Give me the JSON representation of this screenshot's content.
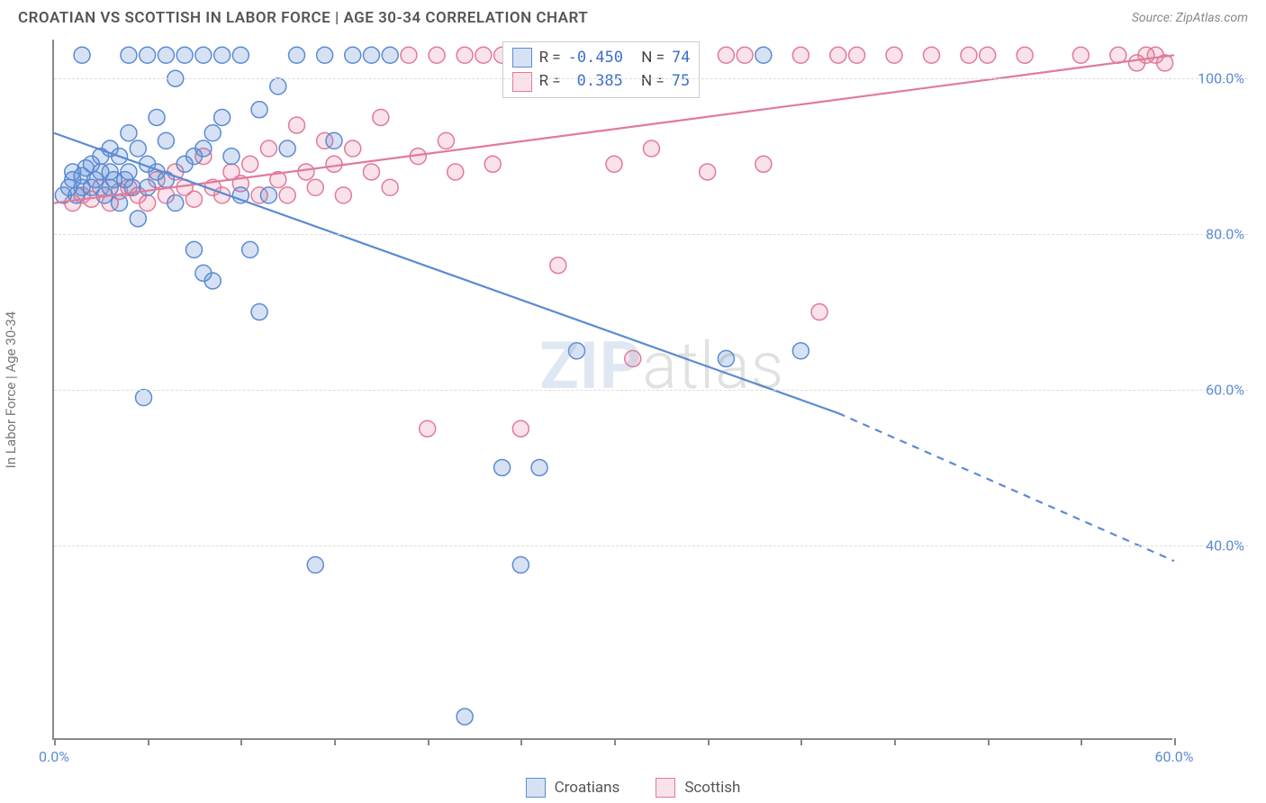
{
  "title": "CROATIAN VS SCOTTISH IN LABOR FORCE | AGE 30-34 CORRELATION CHART",
  "source_prefix": "Source: ",
  "source_name": "ZipAtlas.com",
  "y_axis_label": "In Labor Force | Age 30-34",
  "watermark_bold": "ZIP",
  "watermark_thin": "atlas",
  "chart": {
    "type": "scatter-with-regression",
    "background_color": "#ffffff",
    "grid_color": "#dddddd",
    "axis_color": "#888888",
    "xlim": [
      0,
      60
    ],
    "ylim": [
      15,
      105
    ],
    "x_ticks_major": [
      0,
      60
    ],
    "x_ticks_minor": [
      5,
      10,
      15,
      20,
      25,
      30,
      35,
      40,
      45,
      50,
      55
    ],
    "y_ticks": [
      40,
      60,
      80,
      100
    ],
    "x_tick_labels": {
      "0": "0.0%",
      "60": "60.0%"
    },
    "y_tick_labels": {
      "40": "40.0%",
      "60": "60.0%",
      "80": "80.0%",
      "100": "100.0%"
    },
    "marker_radius": 9,
    "marker_stroke_width": 1.5,
    "marker_fill_opacity": 0.25,
    "line_width": 2.2
  },
  "series": {
    "croatians": {
      "label": "Croatians",
      "color": "#5b8bd4",
      "fill": "rgba(91,139,212,0.25)",
      "R": "-0.450",
      "N": "74",
      "regression": {
        "x1": 0,
        "y1": 93,
        "x2": 42,
        "y2": 57,
        "dash_x1": 42,
        "dash_y1": 57,
        "dash_x2": 60,
        "dash_y2": 38
      },
      "points": [
        [
          0.5,
          85
        ],
        [
          0.8,
          86
        ],
        [
          1,
          87
        ],
        [
          1,
          88
        ],
        [
          1.2,
          85
        ],
        [
          1.5,
          86
        ],
        [
          1.5,
          87.5
        ],
        [
          1.7,
          88.5
        ],
        [
          2,
          86
        ],
        [
          2,
          89
        ],
        [
          2.2,
          87
        ],
        [
          2.5,
          88
        ],
        [
          2.5,
          90
        ],
        [
          2.7,
          85
        ],
        [
          3,
          86
        ],
        [
          3,
          88
        ],
        [
          3,
          91
        ],
        [
          3.2,
          87
        ],
        [
          3.5,
          84
        ],
        [
          3.5,
          90
        ],
        [
          3.8,
          87
        ],
        [
          4,
          88
        ],
        [
          4,
          93
        ],
        [
          4.2,
          86
        ],
        [
          4.5,
          82
        ],
        [
          4.5,
          91
        ],
        [
          4.8,
          59
        ],
        [
          5,
          86
        ],
        [
          5,
          89
        ],
        [
          5,
          103
        ],
        [
          5.5,
          88
        ],
        [
          5.5,
          95
        ],
        [
          6,
          87
        ],
        [
          6,
          92
        ],
        [
          6.5,
          84
        ],
        [
          6.5,
          100
        ],
        [
          7,
          89
        ],
        [
          7,
          103
        ],
        [
          7.5,
          78
        ],
        [
          7.5,
          90
        ],
        [
          8,
          75
        ],
        [
          8,
          91
        ],
        [
          8,
          103
        ],
        [
          8.5,
          74
        ],
        [
          8.5,
          93
        ],
        [
          9,
          95
        ],
        [
          9,
          103
        ],
        [
          9.5,
          90
        ],
        [
          10,
          85
        ],
        [
          10,
          103
        ],
        [
          10.5,
          78
        ],
        [
          11,
          96
        ],
        [
          11,
          70
        ],
        [
          11.5,
          85
        ],
        [
          12,
          99
        ],
        [
          12.5,
          91
        ],
        [
          13,
          103
        ],
        [
          14,
          37.5
        ],
        [
          14.5,
          103
        ],
        [
          15,
          92
        ],
        [
          16,
          103
        ],
        [
          17,
          103
        ],
        [
          18,
          103
        ],
        [
          22,
          18
        ],
        [
          24,
          50
        ],
        [
          25,
          37.5
        ],
        [
          26,
          50
        ],
        [
          28,
          65
        ],
        [
          36,
          64
        ],
        [
          38,
          103
        ],
        [
          40,
          65
        ],
        [
          4,
          103
        ],
        [
          6,
          103
        ],
        [
          1.5,
          103
        ]
      ]
    },
    "scottish": {
      "label": "Scottish",
      "color": "#e27a9a",
      "fill": "rgba(226,122,154,0.22)",
      "R": "0.385",
      "N": "75",
      "regression": {
        "x1": 0,
        "y1": 84,
        "x2": 60,
        "y2": 103
      },
      "points": [
        [
          1,
          84
        ],
        [
          1.5,
          85
        ],
        [
          2,
          84.5
        ],
        [
          2.5,
          86
        ],
        [
          3,
          84
        ],
        [
          3.5,
          85.5
        ],
        [
          4,
          86
        ],
        [
          4.5,
          85
        ],
        [
          5,
          84
        ],
        [
          5.5,
          87
        ],
        [
          6,
          85
        ],
        [
          6.5,
          88
        ],
        [
          7,
          86
        ],
        [
          7.5,
          84.5
        ],
        [
          8,
          90
        ],
        [
          8.5,
          86
        ],
        [
          9,
          85
        ],
        [
          9.5,
          88
        ],
        [
          10,
          86.5
        ],
        [
          10.5,
          89
        ],
        [
          11,
          85
        ],
        [
          11.5,
          91
        ],
        [
          12,
          87
        ],
        [
          12.5,
          85
        ],
        [
          13,
          94
        ],
        [
          13.5,
          88
        ],
        [
          14,
          86
        ],
        [
          14.5,
          92
        ],
        [
          15,
          89
        ],
        [
          15.5,
          85
        ],
        [
          16,
          91
        ],
        [
          17,
          88
        ],
        [
          17.5,
          95
        ],
        [
          18,
          86
        ],
        [
          19,
          103
        ],
        [
          19.5,
          90
        ],
        [
          20,
          55
        ],
        [
          20.5,
          103
        ],
        [
          21,
          92
        ],
        [
          21.5,
          88
        ],
        [
          22,
          103
        ],
        [
          23,
          103
        ],
        [
          23.5,
          89
        ],
        [
          24,
          103
        ],
        [
          25,
          55
        ],
        [
          25.5,
          103
        ],
        [
          26,
          103
        ],
        [
          27,
          76
        ],
        [
          28,
          103
        ],
        [
          29,
          103
        ],
        [
          30,
          89
        ],
        [
          30.5,
          103
        ],
        [
          31,
          64
        ],
        [
          32,
          91
        ],
        [
          33,
          103
        ],
        [
          34,
          103
        ],
        [
          35,
          88
        ],
        [
          36,
          103
        ],
        [
          37,
          103
        ],
        [
          38,
          89
        ],
        [
          40,
          103
        ],
        [
          41,
          70
        ],
        [
          42,
          103
        ],
        [
          43,
          103
        ],
        [
          45,
          103
        ],
        [
          47,
          103
        ],
        [
          49,
          103
        ],
        [
          50,
          103
        ],
        [
          52,
          103
        ],
        [
          55,
          103
        ],
        [
          57,
          103
        ],
        [
          58,
          102
        ],
        [
          58.5,
          103
        ],
        [
          59,
          103
        ],
        [
          59.5,
          102
        ]
      ]
    }
  },
  "stats_labels": {
    "R": "R =",
    "N": "N ="
  },
  "bottom_legend": [
    {
      "key": "croatians"
    },
    {
      "key": "scottish"
    }
  ]
}
